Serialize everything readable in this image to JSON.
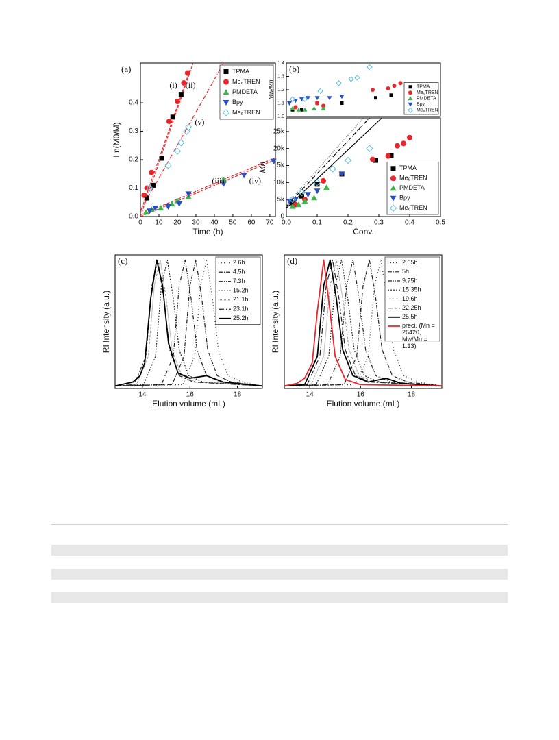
{
  "chart_data": [
    {
      "type": "scatter",
      "panel": "(a)",
      "xlabel": "Time (h)",
      "ylabel": "Ln(M0/M)",
      "xlim": [
        0,
        73
      ],
      "ylim": [
        0,
        0.54
      ],
      "xticks": [
        0,
        10,
        20,
        30,
        40,
        50,
        60,
        70
      ],
      "yticks": [
        {
          "value": 0,
          "label": "0.0"
        },
        0.1,
        0.2,
        0.3,
        0.4
      ],
      "legend": "upper right",
      "series": [
        {
          "name": "TPMA",
          "color": "#000000",
          "marker": "square",
          "x": [
            3.5,
            7,
            11.5,
            17.5,
            22
          ],
          "y": [
            0.065,
            0.11,
            0.205,
            0.35,
            0.43
          ]
        },
        {
          "name": "Me₆TREN",
          "color": "#e8262b",
          "marker": "circle",
          "x": [
            2,
            3.5,
            6,
            15.5,
            20,
            23.5,
            25.5
          ],
          "y": [
            0.075,
            0.1,
            0.155,
            0.335,
            0.405,
            0.47,
            0.505
          ]
        },
        {
          "name": "PMDETA",
          "color": "#3cb44b",
          "marker": "triangle",
          "x": [
            3,
            6,
            11,
            17,
            20,
            26,
            45
          ],
          "y": [
            0.015,
            0.025,
            0.03,
            0.045,
            0.055,
            0.07,
            0.13
          ]
        },
        {
          "name": "Bpy",
          "color": "#2a4fbf",
          "marker": "triangle-down",
          "x": [
            5,
            8,
            15,
            21,
            26,
            45,
            56,
            72
          ],
          "y": [
            0.02,
            0.03,
            0.035,
            0.045,
            0.08,
            0.115,
            0.145,
            0.195
          ]
        },
        {
          "name": "Me₆TREN",
          "color": "#5bc0de",
          "marker": "diamond-open",
          "x": [
            5,
            15,
            20,
            22,
            25,
            26
          ],
          "y": [
            0.1,
            0.18,
            0.23,
            0.26,
            0.3,
            0.315
          ]
        }
      ],
      "fits": [
        {
          "x": [
            0,
            27
          ],
          "y": [
            0.015,
            0.52
          ],
          "color": "#e8262b",
          "dash": "4,2"
        },
        {
          "x": [
            0,
            28.5
          ],
          "y": [
            0,
            0.54
          ],
          "color": "#e8262b",
          "dash": "4,2"
        },
        {
          "x": [
            0,
            45
          ],
          "y": [
            0.02,
            0.54
          ],
          "color": "#e8262b",
          "dash": "6,2,1,2"
        },
        {
          "x": [
            0,
            73
          ],
          "y": [
            0,
            0.2
          ],
          "color": "#e8262b",
          "dash": "4,2"
        },
        {
          "x": [
            0,
            73
          ],
          "y": [
            0.006,
            0.207
          ],
          "color": "#e8262b",
          "dash": "4,2"
        }
      ],
      "annotations": [
        {
          "text": "(i)",
          "x": 17.8,
          "y": 0.46
        },
        {
          "text": "(ii)",
          "x": 27.1,
          "y": 0.46
        },
        {
          "text": "(v)",
          "x": 32,
          "y": 0.33
        },
        {
          "text": "(iii)",
          "x": 42,
          "y": 0.123
        },
        {
          "text": "(iv)",
          "x": 62,
          "y": 0.123
        }
      ]
    },
    {
      "type": "scatter",
      "panel": "(b)",
      "ylabel": "Mw/Mn",
      "xlim": [
        0,
        0.5
      ],
      "ylim": [
        1.0,
        1.4
      ],
      "yticks": [
        {
          "value": 1,
          "label": "1.0"
        },
        1.1,
        1.2,
        1.3,
        1.4
      ],
      "legend": "lower right",
      "series": [
        {
          "name": "TPMA",
          "color": "#000000",
          "marker": "square",
          "x": [
            0.02,
            0.05,
            0.1,
            0.18,
            0.29,
            0.34
          ],
          "y": [
            1.05,
            1.05,
            1.1,
            1.1,
            1.14,
            1.16
          ]
        },
        {
          "name": "Me₆TREN",
          "color": "#e8262b",
          "marker": "circle",
          "x": [
            0.03,
            0.1,
            0.12,
            0.28,
            0.33,
            0.35,
            0.37,
            0.4
          ],
          "y": [
            1.07,
            1.1,
            1.08,
            1.2,
            1.21,
            1.23,
            1.25,
            1.24
          ]
        },
        {
          "name": "PMDETA",
          "color": "#3cb44b",
          "marker": "triangle",
          "x": [
            0.02,
            0.04,
            0.06,
            0.09,
            0.12
          ],
          "y": [
            1.06,
            1.05,
            1.05,
            1.06,
            1.06
          ]
        },
        {
          "name": "Bpy",
          "color": "#2a4fbf",
          "marker": "triangle-down",
          "x": [
            0.01,
            0.03,
            0.05,
            0.07,
            0.1,
            0.14,
            0.18
          ],
          "y": [
            1.1,
            1.12,
            1.13,
            1.14,
            1.14,
            1.14,
            1.15
          ]
        },
        {
          "name": "Me₆TREN",
          "color": "#5bc0de",
          "marker": "diamond-open",
          "x": [
            0.02,
            0.06,
            0.11,
            0.17,
            0.21,
            0.23,
            0.27
          ],
          "y": [
            1.13,
            1.13,
            1.19,
            1.25,
            1.28,
            1.29,
            1.37
          ]
        }
      ]
    },
    {
      "type": "scatter",
      "xlabel": "Conv.",
      "ylabel": "Mn",
      "xlim": [
        0,
        0.5
      ],
      "ylim": [
        0,
        29000
      ],
      "xticks": [
        {
          "value": 0,
          "label": "0.0"
        },
        0.1,
        0.2,
        0.3,
        0.4,
        0.5
      ],
      "yticks": [
        0,
        {
          "value": 5000,
          "label": "5k"
        },
        {
          "value": 10000,
          "label": "10k"
        },
        {
          "value": 15000,
          "label": "15k"
        },
        {
          "value": 20000,
          "label": "20k"
        },
        {
          "value": 25000,
          "label": "25k"
        }
      ],
      "legend": "lower right",
      "series": [
        {
          "name": "TPMA",
          "color": "#000000",
          "marker": "square",
          "x": [
            0.02,
            0.05,
            0.1,
            0.18,
            0.29,
            0.34
          ],
          "y": [
            4000,
            6000,
            9500,
            12500,
            16500,
            18000
          ]
        },
        {
          "name": "Me₆TREN",
          "color": "#e8262b",
          "marker": "circle",
          "x": [
            0.03,
            0.06,
            0.12,
            0.28,
            0.33,
            0.36,
            0.38,
            0.4
          ],
          "y": [
            3500,
            5000,
            10500,
            16800,
            17800,
            20800,
            21500,
            23200
          ]
        },
        {
          "name": "PMDETA",
          "color": "#3cb44b",
          "marker": "triangle",
          "x": [
            0.02,
            0.04,
            0.06,
            0.09,
            0.13
          ],
          "y": [
            3000,
            3500,
            4500,
            5500,
            8500
          ]
        },
        {
          "name": "Bpy",
          "color": "#2a4fbf",
          "marker": "triangle-down",
          "x": [
            0.01,
            0.03,
            0.07,
            0.1,
            0.18
          ],
          "y": [
            4500,
            5000,
            6500,
            7500,
            12500
          ]
        },
        {
          "name": "Me₆TREN",
          "color": "#5bc0de",
          "marker": "diamond-open",
          "x": [
            0.02,
            0.05,
            0.1,
            0.15,
            0.2,
            0.27
          ],
          "y": [
            5000,
            7000,
            10000,
            14000,
            16500,
            20000
          ]
        }
      ],
      "fits": [
        {
          "x": [
            0,
            0.31
          ],
          "y": [
            2500,
            29000
          ],
          "color": "#000000",
          "dash": "none"
        },
        {
          "x": [
            0,
            0.27
          ],
          "y": [
            3000,
            29000
          ],
          "color": "#000000",
          "dash": "6,2,1,2"
        },
        {
          "x": [
            0,
            0.25
          ],
          "y": [
            3500,
            29000
          ],
          "color": "#555555",
          "dash": "1,2"
        }
      ]
    },
    {
      "type": "line",
      "panel": "(c)",
      "xlabel": "Elution volume (mL)",
      "ylabel": "RI Intensity (a.u.)",
      "xlim": [
        12.85,
        19.05
      ],
      "ylim": [
        0,
        1.04
      ],
      "xticks": [
        14,
        16,
        18
      ],
      "legend": "upper right",
      "series": [
        {
          "name": "2.6h",
          "color": "#333333",
          "dash": "1,3",
          "x": [
            12.85,
            15.7,
            16.2,
            16.45,
            16.7,
            16.95,
            17.2,
            17.6,
            18.2,
            19.05
          ],
          "y": [
            0.02,
            0.03,
            0.25,
            0.8,
            1.0,
            0.7,
            0.3,
            0.1,
            0.05,
            0.02
          ]
        },
        {
          "name": "4.5h",
          "color": "#222222",
          "dash": "6,2,1,2",
          "x": [
            12.85,
            15.25,
            15.75,
            16.0,
            16.25,
            16.5,
            16.75,
            17.15,
            17.75,
            19.05
          ],
          "y": [
            0.02,
            0.03,
            0.25,
            0.8,
            1.0,
            0.7,
            0.3,
            0.1,
            0.05,
            0.02
          ]
        },
        {
          "name": "7.3h",
          "color": "#222222",
          "dash": "6,2,1,2,1,2",
          "x": [
            12.85,
            14.8,
            15.3,
            15.55,
            15.8,
            16.05,
            16.3,
            16.7,
            17.3,
            19.05
          ],
          "y": [
            0.02,
            0.03,
            0.25,
            0.8,
            1.0,
            0.7,
            0.3,
            0.1,
            0.05,
            0.02
          ]
        },
        {
          "name": "15.2h",
          "color": "#222222",
          "dash": "2,2",
          "x": [
            12.85,
            14.05,
            14.55,
            14.8,
            15.05,
            15.3,
            15.55,
            15.95,
            16.55,
            19.05
          ],
          "y": [
            0.02,
            0.03,
            0.25,
            0.8,
            1.0,
            0.7,
            0.3,
            0.1,
            0.05,
            0.02
          ]
        },
        {
          "name": "21.1h",
          "color": "#888888",
          "dash": "1,1",
          "x": [
            12.85,
            13.75,
            14.25,
            14.5,
            14.75,
            15.0,
            15.25,
            15.65,
            16.25,
            19.05
          ],
          "y": [
            0.02,
            0.03,
            0.25,
            0.8,
            1.0,
            0.7,
            0.3,
            0.1,
            0.05,
            0.02
          ]
        },
        {
          "name": "23.1h",
          "color": "#222222",
          "dash": "8,3,2,3",
          "x": [
            12.85,
            13.65,
            14.15,
            14.4,
            14.65,
            14.9,
            15.15,
            15.55,
            16.15,
            19.05
          ],
          "y": [
            0.02,
            0.03,
            0.25,
            0.8,
            1.0,
            0.7,
            0.3,
            0.1,
            0.05,
            0.02
          ]
        },
        {
          "name": "25.2h",
          "color": "#000000",
          "dash": "none",
          "x": [
            12.85,
            13.6,
            13.9,
            14.1,
            14.35,
            14.6,
            14.85,
            15.1,
            15.5,
            16.0,
            16.7,
            17.4,
            19.05
          ],
          "y": [
            0.02,
            0.05,
            0.1,
            0.2,
            0.7,
            1.0,
            0.8,
            0.35,
            0.12,
            0.08,
            0.1,
            0.05,
            0.02
          ]
        }
      ]
    },
    {
      "type": "line",
      "panel": "(d)",
      "xlabel": "Elution volume (mL)",
      "ylabel": "RI Intensity (a.u.)",
      "xlim": [
        13.0,
        19.2
      ],
      "ylim": [
        0,
        1.04
      ],
      "xticks": [
        14,
        16,
        18
      ],
      "legend": "upper right",
      "series": [
        {
          "name": "2.65h",
          "color": "#333333",
          "dash": "1,3",
          "x": [
            13.0,
            15.8,
            16.3,
            16.55,
            16.8,
            17.05,
            17.3,
            17.7,
            18.3,
            19.2
          ],
          "y": [
            0.02,
            0.03,
            0.25,
            0.8,
            1.0,
            0.7,
            0.3,
            0.1,
            0.05,
            0.02
          ]
        },
        {
          "name": "5h",
          "color": "#222222",
          "dash": "6,2,1,2",
          "x": [
            13.0,
            15.35,
            15.85,
            16.1,
            16.35,
            16.6,
            16.85,
            17.25,
            17.85,
            19.2
          ],
          "y": [
            0.02,
            0.03,
            0.25,
            0.8,
            1.0,
            0.7,
            0.3,
            0.1,
            0.05,
            0.02
          ]
        },
        {
          "name": "9.75h",
          "color": "#222222",
          "dash": "6,2,1,2,1,2",
          "x": [
            13.0,
            14.7,
            15.2,
            15.45,
            15.7,
            15.95,
            16.2,
            16.6,
            17.2,
            19.2
          ],
          "y": [
            0.02,
            0.03,
            0.25,
            0.8,
            1.0,
            0.7,
            0.3,
            0.1,
            0.05,
            0.02
          ]
        },
        {
          "name": "15.35h",
          "color": "#222222",
          "dash": "2,2",
          "x": [
            13.0,
            14.25,
            14.75,
            15.0,
            15.25,
            15.5,
            15.75,
            16.15,
            16.75,
            19.2
          ],
          "y": [
            0.02,
            0.03,
            0.25,
            0.8,
            1.0,
            0.7,
            0.3,
            0.1,
            0.05,
            0.02
          ]
        },
        {
          "name": "19.6h",
          "color": "#888888",
          "dash": "1,1",
          "x": [
            13.0,
            14.05,
            14.55,
            14.8,
            15.05,
            15.3,
            15.55,
            15.95,
            16.55,
            19.2
          ],
          "y": [
            0.02,
            0.03,
            0.25,
            0.8,
            1.0,
            0.7,
            0.3,
            0.1,
            0.05,
            0.02
          ]
        },
        {
          "name": "22.25h",
          "color": "#222222",
          "dash": "8,3,2,3",
          "x": [
            13.0,
            13.9,
            14.4,
            14.65,
            14.9,
            15.15,
            15.4,
            15.8,
            16.4,
            19.2
          ],
          "y": [
            0.02,
            0.03,
            0.25,
            0.8,
            1.0,
            0.7,
            0.3,
            0.1,
            0.05,
            0.02
          ]
        },
        {
          "name": "25.5h",
          "color": "#000000",
          "dash": "none",
          "x": [
            13.0,
            13.8,
            14.3,
            14.55,
            14.8,
            15.05,
            15.3,
            15.7,
            16.3,
            17.0,
            17.6,
            19.2
          ],
          "y": [
            0.02,
            0.03,
            0.25,
            0.8,
            1.0,
            0.7,
            0.3,
            0.1,
            0.05,
            0.08,
            0.04,
            0.02
          ]
        },
        {
          "name": "preci. (Mn = 26420, Mw/Mn = 1.13)",
          "color": "#e8262b",
          "dash": "none",
          "x": [
            13.0,
            13.5,
            13.8,
            14.1,
            14.3,
            14.55,
            14.8,
            15.0,
            15.4,
            16.0,
            19.2
          ],
          "y": [
            0.02,
            0.04,
            0.08,
            0.2,
            0.6,
            1.0,
            0.6,
            0.25,
            0.07,
            0.03,
            0.02
          ]
        }
      ]
    }
  ]
}
